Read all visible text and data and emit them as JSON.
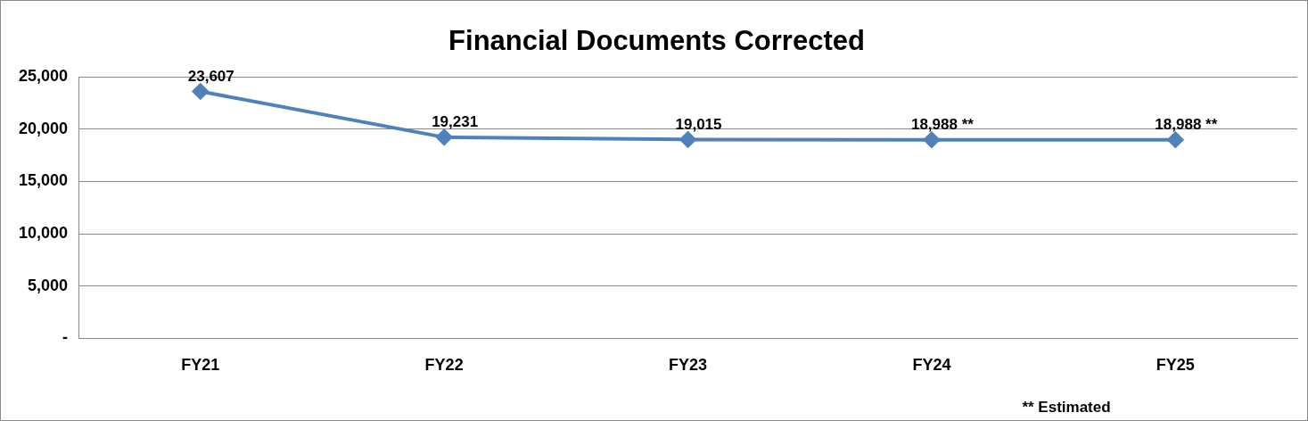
{
  "chart_data": {
    "type": "line",
    "title": "Financial Documents Corrected",
    "categories": [
      "FY21",
      "FY22",
      "FY23",
      "FY24",
      "FY25"
    ],
    "series": [
      {
        "color": "#4f81bd",
        "values": [
          23607,
          19231,
          19015,
          18988,
          18988
        ],
        "value_labels": [
          "23,607",
          "19,231",
          "19,015",
          "18,988 **",
          "18,988 **"
        ]
      }
    ],
    "ylim": [
      0,
      25000
    ],
    "yticks": [
      {
        "value": 0,
        "label": "-"
      },
      {
        "value": 5000,
        "label": "5,000"
      },
      {
        "value": 10000,
        "label": "10,000"
      },
      {
        "value": 15000,
        "label": "15,000"
      },
      {
        "value": 20000,
        "label": "20,000"
      },
      {
        "value": 25000,
        "label": "25,000"
      }
    ],
    "grid": "y",
    "legend": false,
    "marker": "diamond",
    "line_style": "solid",
    "annotations": [
      "** Estimated"
    ]
  }
}
